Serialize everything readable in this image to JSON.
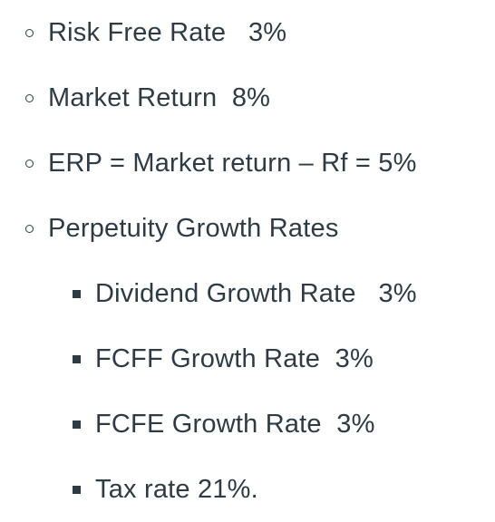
{
  "bullets": {
    "level1_icon": "hollow-circle-bullet",
    "level2_icon": "filled-square-bullet"
  },
  "items": [
    {
      "text": "Risk Free Rate   3%"
    },
    {
      "text": "Market Return  8%"
    },
    {
      "text": "ERP = Market return – Rf = 5%"
    },
    {
      "text": "Perpetuity Growth Rates"
    },
    {
      "text": "Dividend Growth Rate   3%"
    },
    {
      "text": "FCFF Growth Rate  3%"
    },
    {
      "text": "FCFE Growth Rate  3%"
    },
    {
      "text": "Tax rate 21%."
    }
  ],
  "colors": {
    "text": "#2d3b45",
    "background": "#ffffff"
  }
}
